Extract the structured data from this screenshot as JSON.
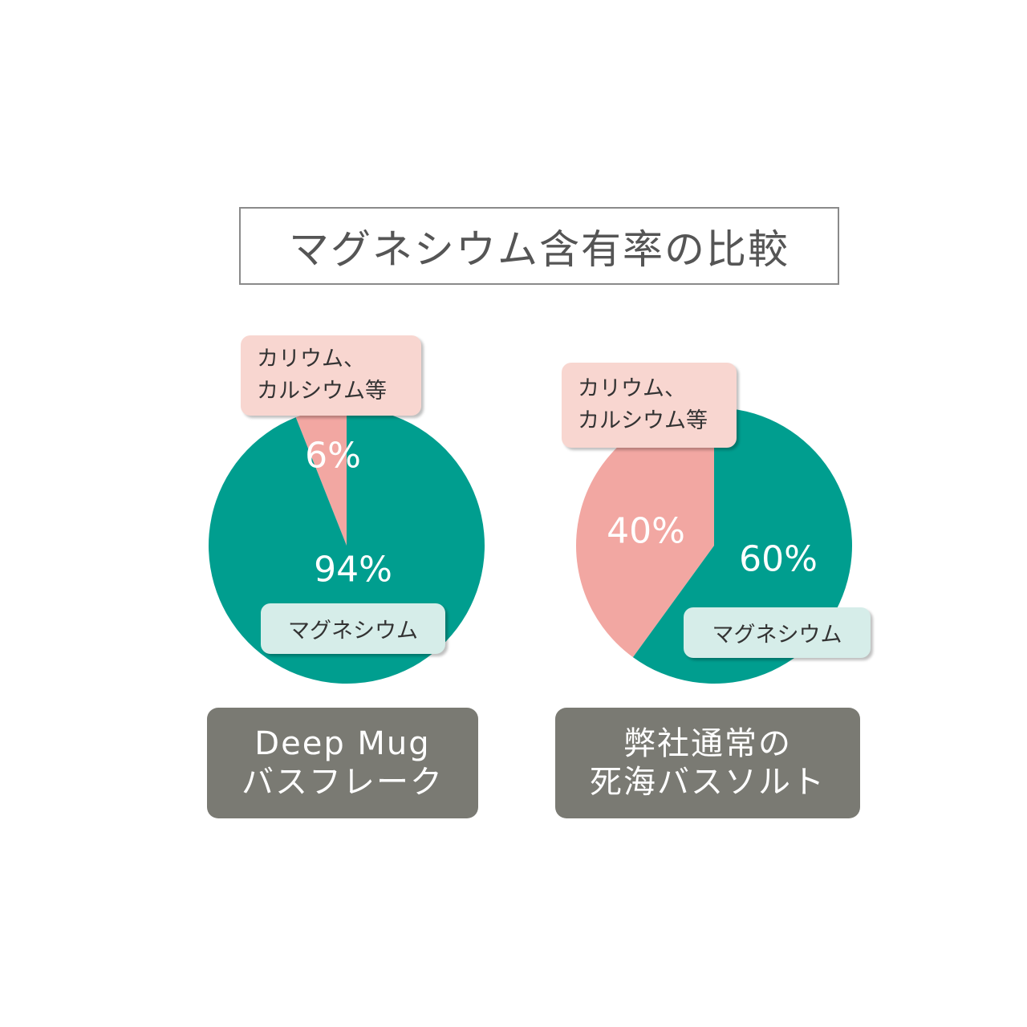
{
  "title": "マグネシウム含有率の比較",
  "chart_data": [
    {
      "type": "pie",
      "caption": "Deep Mug\nバスフレーク",
      "categories": [
        "マグネシウム",
        "カリウム、\nカルシウム等"
      ],
      "values": [
        94,
        6
      ],
      "value_labels": [
        "94%",
        "6%"
      ],
      "colors": [
        "#009e8f",
        "#f2a7a2"
      ]
    },
    {
      "type": "pie",
      "caption": "弊社通常の\n死海バスソルト",
      "categories": [
        "マグネシウム",
        "カリウム、\nカルシウム等"
      ],
      "values": [
        60,
        40
      ],
      "value_labels": [
        "60%",
        "40%"
      ],
      "colors": [
        "#009e8f",
        "#f2a7a2"
      ]
    }
  ]
}
